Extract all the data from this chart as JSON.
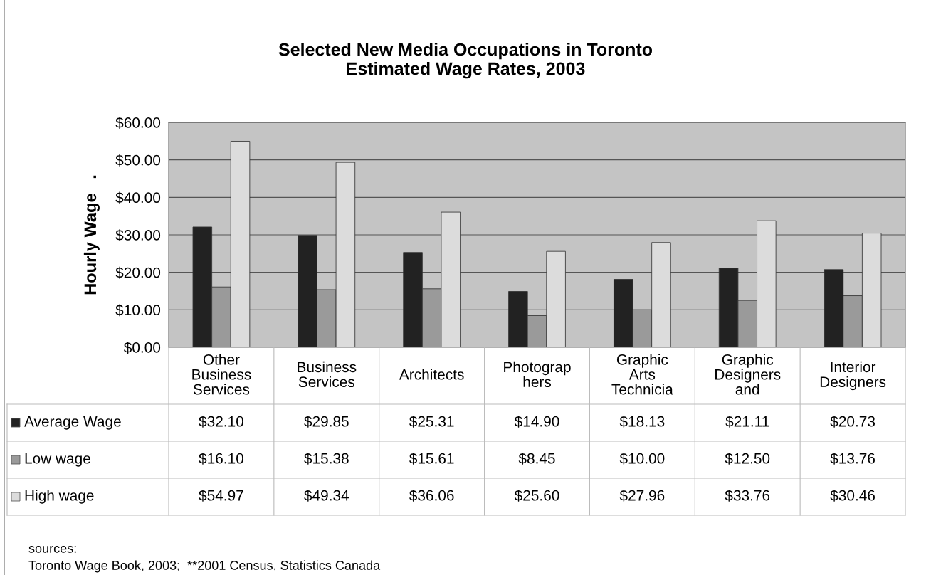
{
  "chart_data": {
    "type": "bar",
    "title": "Selected New Media Occupations in Toronto\nEstimated Wage Rates, 2003",
    "ylabel": "Hourly Wage   .",
    "categories": [
      "Other\nBusiness\nServices",
      "Business\nServices",
      "Architects",
      "Photograp\nhers",
      "Graphic\nArts\nTechnicia",
      "Graphic\nDesigners\nand",
      "Interior\nDesigners"
    ],
    "series": [
      {
        "name": "Average Wage",
        "color": "#222222",
        "values": [
          32.1,
          29.85,
          25.31,
          14.9,
          18.13,
          21.11,
          20.73
        ],
        "value_labels": [
          "$32.10",
          "$29.85",
          "$25.31",
          "$14.90",
          "$18.13",
          "$21.11",
          "$20.73"
        ]
      },
      {
        "name": "Low wage",
        "color": "#9a9a9a",
        "values": [
          16.1,
          15.38,
          15.61,
          8.45,
          10.0,
          12.5,
          13.76
        ],
        "value_labels": [
          "$16.10",
          "$15.38",
          "$15.61",
          "$8.45",
          "$10.00",
          "$12.50",
          "$13.76"
        ]
      },
      {
        "name": "High wage",
        "color": "#dcdcdc",
        "values": [
          54.97,
          49.34,
          36.06,
          25.6,
          27.96,
          33.76,
          30.46
        ],
        "value_labels": [
          "$54.97",
          "$49.34",
          "$36.06",
          "$25.60",
          "$27.96",
          "$33.76",
          "$30.46"
        ]
      }
    ],
    "ylim": [
      0,
      60
    ],
    "yticks": [
      {
        "value": 0,
        "label": "$0.00"
      },
      {
        "value": 10,
        "label": "$10.00"
      },
      {
        "value": 20,
        "label": "$20.00"
      },
      {
        "value": 30,
        "label": "$30.00"
      },
      {
        "value": 40,
        "label": "$40.00"
      },
      {
        "value": 50,
        "label": "$50.00"
      },
      {
        "value": 60,
        "label": "$60.00"
      }
    ],
    "grid": "y",
    "legend": "bottom",
    "annotations": [
      "sources:",
      "Toronto Wage Book, 2003;  **2001 Census, Statistics Canada"
    ]
  }
}
